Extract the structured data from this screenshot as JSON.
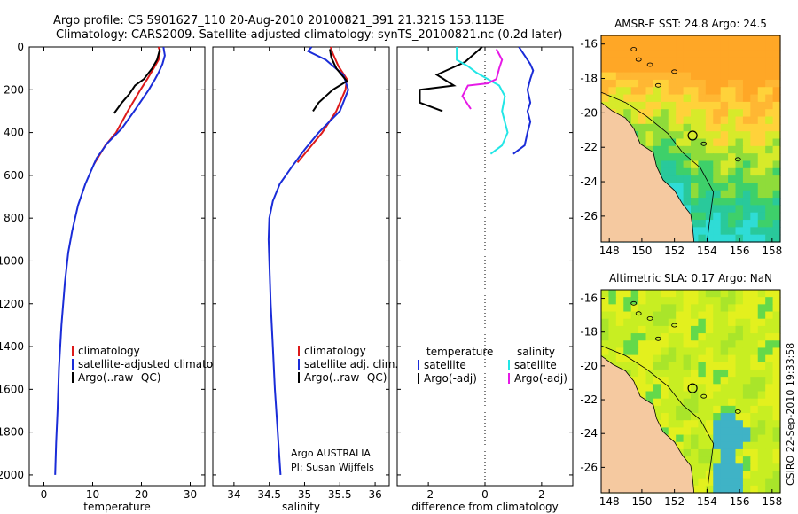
{
  "header": {
    "line1": "Argo profile: CS 5901627_110 20-Aug-2010 20100821_391 21.321S 153.113E",
    "line2": "Climatology: CARS2009. Satellite-adjusted climatology: synTS_20100821.nc (0.2d later)"
  },
  "colors": {
    "red": "#dd1a1a",
    "blue": "#1a2cd8",
    "black": "#000000",
    "cyan": "#22e6e6",
    "magenta": "#e61ae6",
    "land": "#f5c9a0"
  },
  "chart_data": [
    {
      "type": "line",
      "xlabel": "temperature",
      "xlim": [
        -3,
        33
      ],
      "xticks": [
        0,
        10,
        20,
        30
      ],
      "ylim": [
        0,
        2050
      ],
      "yticks": [
        0,
        200,
        400,
        600,
        800,
        1000,
        1200,
        1400,
        1600,
        1800,
        2000
      ],
      "legend": [
        "climatology",
        "satellite-adjusted climatology",
        "Argo(..raw -QC)"
      ],
      "series": [
        {
          "name": "climatology",
          "color": "red",
          "points": [
            [
              23.5,
              0
            ],
            [
              23.8,
              20
            ],
            [
              23.5,
              60
            ],
            [
              22.5,
              100
            ],
            [
              21.2,
              150
            ],
            [
              19.8,
              200
            ],
            [
              17.2,
              300
            ],
            [
              14.8,
              400
            ],
            [
              12.6,
              460
            ],
            [
              10.2,
              550
            ]
          ]
        },
        {
          "name": "satellite-adjusted climatology",
          "color": "blue",
          "points": [
            [
              24.5,
              0
            ],
            [
              24.8,
              40
            ],
            [
              24.3,
              80
            ],
            [
              23.5,
              120
            ],
            [
              22.8,
              150
            ],
            [
              21.5,
              200
            ],
            [
              18.5,
              300
            ],
            [
              16.0,
              380
            ],
            [
              13.0,
              450
            ],
            [
              10.8,
              520
            ],
            [
              8.5,
              640
            ],
            [
              7.0,
              740
            ],
            [
              5.8,
              860
            ],
            [
              5.0,
              960
            ],
            [
              4.3,
              1100
            ],
            [
              3.6,
              1300
            ],
            [
              3.1,
              1500
            ],
            [
              2.8,
              1700
            ],
            [
              2.5,
              1850
            ],
            [
              2.3,
              2000
            ]
          ]
        },
        {
          "name": "Argo(..raw -QC)",
          "color": "black",
          "points": [
            [
              23.8,
              10
            ],
            [
              23.2,
              60
            ],
            [
              22.2,
              100
            ],
            [
              20.5,
              150
            ],
            [
              18.7,
              180
            ],
            [
              17.5,
              220
            ],
            [
              16.0,
              260
            ],
            [
              14.4,
              310
            ]
          ]
        }
      ]
    },
    {
      "type": "line",
      "xlabel": "salinity",
      "xlim": [
        33.7,
        36.2
      ],
      "xticks": [
        34,
        34.5,
        35,
        35.5,
        36
      ],
      "ylim": [
        0,
        2050
      ],
      "legend": [
        "climatology",
        "satellite adj. clim.",
        "Argo(..raw -QC)"
      ],
      "series": [
        {
          "name": "climatology",
          "color": "red",
          "points": [
            [
              35.37,
              0
            ],
            [
              35.4,
              30
            ],
            [
              35.48,
              90
            ],
            [
              35.6,
              150
            ],
            [
              35.58,
              200
            ],
            [
              35.45,
              300
            ],
            [
              35.25,
              400
            ],
            [
              35.05,
              480
            ],
            [
              34.9,
              540
            ]
          ]
        },
        {
          "name": "satellite-adjusted climatology",
          "color": "blue",
          "points": [
            [
              35.1,
              0
            ],
            [
              35.05,
              20
            ],
            [
              35.3,
              60
            ],
            [
              35.55,
              130
            ],
            [
              35.62,
              200
            ],
            [
              35.5,
              300
            ],
            [
              35.2,
              400
            ],
            [
              35.0,
              480
            ],
            [
              34.82,
              560
            ],
            [
              34.65,
              640
            ],
            [
              34.55,
              720
            ],
            [
              34.5,
              800
            ],
            [
              34.49,
              900
            ],
            [
              34.5,
              1000
            ],
            [
              34.52,
              1200
            ],
            [
              34.55,
              1400
            ],
            [
              34.58,
              1600
            ],
            [
              34.62,
              1800
            ],
            [
              34.66,
              2000
            ]
          ]
        },
        {
          "name": "Argo(..raw -QC)",
          "color": "black",
          "points": [
            [
              35.36,
              10
            ],
            [
              35.38,
              50
            ],
            [
              35.45,
              100
            ],
            [
              35.6,
              160
            ],
            [
              35.4,
              200
            ],
            [
              35.2,
              260
            ],
            [
              35.12,
              300
            ]
          ]
        }
      ]
    },
    {
      "type": "line",
      "xlabel": "difference from climatology",
      "xlim": [
        -3.1,
        3.1
      ],
      "xticks": [
        -2,
        0,
        2
      ],
      "ylim": [
        0,
        2050
      ],
      "zero_line": true,
      "legend_headers": [
        "temperature",
        "salinity"
      ],
      "legend": [
        "satellite",
        "Argo(-adj)",
        "satellite",
        "Argo(-adj)"
      ],
      "series": [
        {
          "name": "satellite",
          "color": "blue",
          "points": [
            [
              1.2,
              0
            ],
            [
              1.3,
              20
            ],
            [
              1.6,
              80
            ],
            [
              1.7,
              110
            ],
            [
              1.6,
              150
            ],
            [
              1.5,
              200
            ],
            [
              1.6,
              260
            ],
            [
              1.5,
              300
            ],
            [
              1.6,
              350
            ],
            [
              1.5,
              400
            ],
            [
              1.4,
              460
            ],
            [
              1.0,
              500
            ]
          ]
        },
        {
          "name": "Argo(-adj)",
          "color": "black",
          "points": [
            [
              -0.1,
              0
            ],
            [
              -0.7,
              70
            ],
            [
              -1.2,
              100
            ],
            [
              -1.7,
              130
            ],
            [
              -1.1,
              180
            ],
            [
              -2.3,
              200
            ],
            [
              -2.3,
              260
            ],
            [
              -1.5,
              300
            ]
          ]
        },
        {
          "name": "satellite",
          "color": "cyan",
          "points": [
            [
              -1.0,
              0
            ],
            [
              -1.0,
              60
            ],
            [
              -0.6,
              90
            ],
            [
              -0.3,
              120
            ],
            [
              0.1,
              150
            ],
            [
              0.5,
              180
            ],
            [
              0.7,
              230
            ],
            [
              0.6,
              300
            ],
            [
              0.8,
              400
            ],
            [
              0.6,
              460
            ],
            [
              0.2,
              500
            ]
          ]
        },
        {
          "name": "Argo(-adj)",
          "color": "magenta",
          "points": [
            [
              0.4,
              10
            ],
            [
              0.6,
              60
            ],
            [
              0.5,
              100
            ],
            [
              0.4,
              150
            ],
            [
              0.1,
              170
            ],
            [
              -0.6,
              180
            ],
            [
              -0.8,
              230
            ],
            [
              -0.5,
              290
            ]
          ]
        }
      ]
    }
  ],
  "maps": [
    {
      "title": "AMSR-E SST: 24.8 Argo: 24.5",
      "kind": "sst"
    },
    {
      "title": "Altimetric SLA: 0.17 Argo: NaN",
      "kind": "sla"
    }
  ],
  "map_axes": {
    "xticks": [
      148,
      150,
      152,
      154,
      156,
      158
    ],
    "yticks": [
      -16,
      -18,
      -20,
      -22,
      -24,
      -26
    ],
    "xlim": [
      147.5,
      158.5
    ],
    "ylim": [
      -27.5,
      -15.5
    ]
  },
  "annotations": {
    "institution": "Argo AUSTRALIA",
    "pi": "PI: Susan Wijffels",
    "stamp": "CSIRO 22-Sep-2010 19:33:58"
  }
}
